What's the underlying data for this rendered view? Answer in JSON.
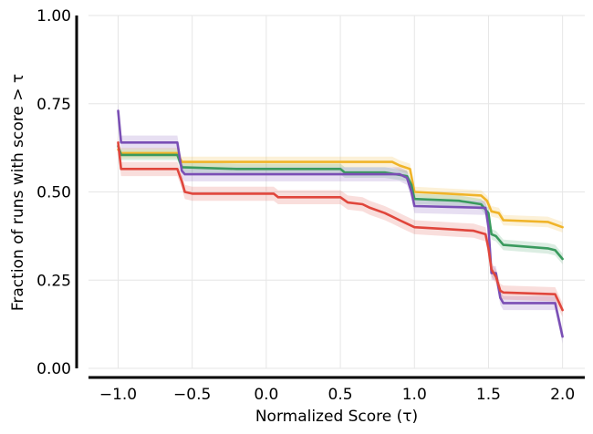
{
  "chart_data": {
    "type": "line",
    "title": "",
    "xlabel": "Normalized Score (τ)",
    "ylabel": "Fraction of runs with score > τ",
    "xlim": [
      -1.2,
      2.15
    ],
    "ylim": [
      0.0,
      1.0
    ],
    "xticks": [
      -1.0,
      -0.5,
      0.0,
      0.5,
      1.0,
      1.5,
      2.0
    ],
    "xtick_labels": [
      "−1.0",
      "−0.5",
      "0.0",
      "0.5",
      "1.0",
      "1.5",
      "2.0"
    ],
    "yticks": [
      0.0,
      0.25,
      0.5,
      0.75,
      1.0
    ],
    "ytick_labels": [
      "0.00",
      "0.25",
      "0.50",
      "0.75",
      "1.00"
    ],
    "grid": true,
    "series": [
      {
        "name": "orange",
        "color": "#f0b429",
        "ci": 0.015,
        "points": [
          [
            -1.0,
            0.62
          ],
          [
            -0.98,
            0.61
          ],
          [
            -0.6,
            0.61
          ],
          [
            -0.57,
            0.585
          ],
          [
            0.85,
            0.585
          ],
          [
            0.9,
            0.575
          ],
          [
            0.97,
            0.565
          ],
          [
            1.0,
            0.5
          ],
          [
            1.45,
            0.49
          ],
          [
            1.49,
            0.475
          ],
          [
            1.52,
            0.445
          ],
          [
            1.57,
            0.44
          ],
          [
            1.6,
            0.42
          ],
          [
            1.9,
            0.415
          ],
          [
            2.0,
            0.4
          ]
        ]
      },
      {
        "name": "green",
        "color": "#3a9a5e",
        "ci": 0.015,
        "points": [
          [
            -1.0,
            0.63
          ],
          [
            -0.98,
            0.605
          ],
          [
            -0.6,
            0.605
          ],
          [
            -0.57,
            0.57
          ],
          [
            -0.2,
            0.565
          ],
          [
            0.5,
            0.565
          ],
          [
            0.53,
            0.555
          ],
          [
            0.8,
            0.555
          ],
          [
            0.95,
            0.545
          ],
          [
            0.98,
            0.52
          ],
          [
            1.0,
            0.48
          ],
          [
            1.3,
            0.475
          ],
          [
            1.45,
            0.465
          ],
          [
            1.5,
            0.44
          ],
          [
            1.52,
            0.38
          ],
          [
            1.55,
            0.375
          ],
          [
            1.6,
            0.35
          ],
          [
            1.9,
            0.34
          ],
          [
            1.95,
            0.335
          ],
          [
            2.0,
            0.31
          ]
        ]
      },
      {
        "name": "purple",
        "color": "#7a4fb5",
        "ci": 0.02,
        "points": [
          [
            -1.0,
            0.73
          ],
          [
            -0.98,
            0.64
          ],
          [
            -0.6,
            0.64
          ],
          [
            -0.57,
            0.56
          ],
          [
            -0.55,
            0.55
          ],
          [
            0.9,
            0.55
          ],
          [
            0.95,
            0.54
          ],
          [
            0.98,
            0.5
          ],
          [
            1.0,
            0.46
          ],
          [
            1.48,
            0.455
          ],
          [
            1.5,
            0.4
          ],
          [
            1.52,
            0.27
          ],
          [
            1.55,
            0.27
          ],
          [
            1.58,
            0.2
          ],
          [
            1.6,
            0.185
          ],
          [
            1.95,
            0.185
          ],
          [
            2.0,
            0.09
          ]
        ]
      },
      {
        "name": "red",
        "color": "#e0463c",
        "ci": 0.02,
        "points": [
          [
            -1.0,
            0.64
          ],
          [
            -0.98,
            0.565
          ],
          [
            -0.6,
            0.565
          ],
          [
            -0.57,
            0.53
          ],
          [
            -0.55,
            0.5
          ],
          [
            -0.5,
            0.495
          ],
          [
            0.05,
            0.495
          ],
          [
            0.08,
            0.485
          ],
          [
            0.5,
            0.485
          ],
          [
            0.55,
            0.47
          ],
          [
            0.65,
            0.465
          ],
          [
            0.7,
            0.455
          ],
          [
            0.8,
            0.44
          ],
          [
            0.85,
            0.43
          ],
          [
            0.9,
            0.42
          ],
          [
            0.95,
            0.41
          ],
          [
            1.0,
            0.4
          ],
          [
            1.2,
            0.395
          ],
          [
            1.4,
            0.39
          ],
          [
            1.48,
            0.38
          ],
          [
            1.5,
            0.34
          ],
          [
            1.52,
            0.28
          ],
          [
            1.55,
            0.26
          ],
          [
            1.58,
            0.22
          ],
          [
            1.6,
            0.215
          ],
          [
            1.95,
            0.21
          ],
          [
            2.0,
            0.165
          ]
        ]
      }
    ]
  }
}
